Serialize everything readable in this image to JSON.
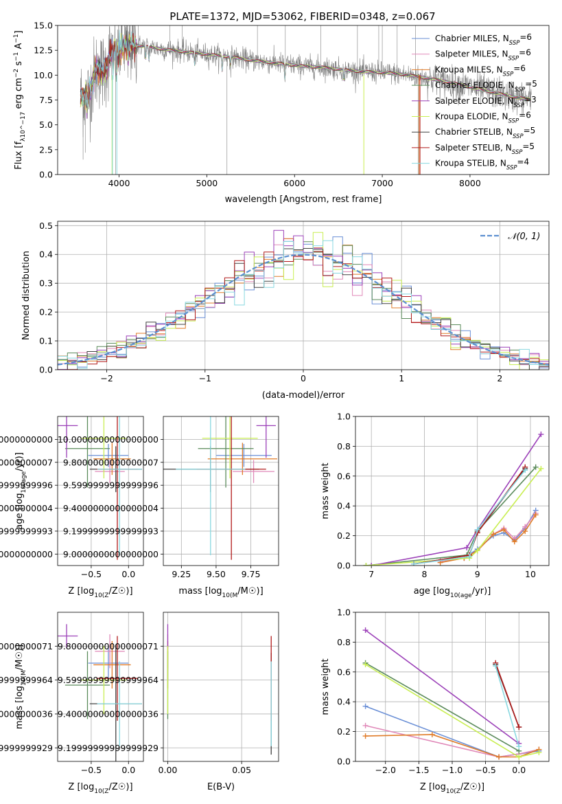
{
  "figure": {
    "title": "PLATE=1372, MJD=53062, FIBERID=0348, z=0.067"
  },
  "legend": [
    {
      "name": "Chabrier MILES",
      "nssp": "6",
      "color": "#6a8fd6"
    },
    {
      "name": "Salpeter MILES",
      "nssp": "6",
      "color": "#e088b8"
    },
    {
      "name": "Kroupa MILES",
      "nssp": "6",
      "color": "#e07b28"
    },
    {
      "name": "Chabrier ELODIE",
      "nssp": "5",
      "color": "#5a8a5a"
    },
    {
      "name": "Salpeter ELODIE",
      "nssp": "3",
      "color": "#9b3fb8"
    },
    {
      "name": "Kroupa ELODIE",
      "nssp": "6",
      "color": "#c8ee50"
    },
    {
      "name": "Chabrier STELIB",
      "nssp": "5",
      "color": "#404040"
    },
    {
      "name": "Salpeter STELIB",
      "nssp": "5",
      "color": "#b01818"
    },
    {
      "name": "Kroupa STELIB",
      "nssp": "4",
      "color": "#88d8e0"
    }
  ],
  "chart_data": [
    {
      "id": "spectrum",
      "type": "line",
      "xlabel": "wavelength [Angstrom, rest frame]",
      "ylabel": "Flux [f_λ 10^-17 erg cm^-2 s^-1 A^-1]",
      "xlim": [
        3300,
        8900
      ],
      "ylim": [
        0,
        15
      ],
      "xticks": [
        4000,
        5000,
        6000,
        7000,
        8000
      ],
      "yticks": [
        0.0,
        2.5,
        5.0,
        7.5,
        10.0,
        12.5,
        15.0
      ],
      "continuum": {
        "x": [
          3560,
          3650,
          3750,
          3850,
          3950,
          4050,
          4150,
          4300,
          4500,
          4700,
          4900,
          5100,
          5300,
          5500,
          5700,
          5900,
          6100,
          6300,
          6500,
          6700,
          6900,
          7100,
          7300,
          7500,
          7700,
          7900,
          8100,
          8300,
          8500,
          8700
        ],
        "y": [
          7.2,
          8.6,
          10.0,
          11.3,
          12.3,
          12.9,
          13.0,
          12.9,
          12.6,
          12.4,
          12.2,
          12.0,
          11.8,
          11.5,
          11.3,
          11.1,
          10.9,
          10.8,
          10.6,
          10.4,
          10.3,
          10.2,
          10.0,
          9.7,
          9.4,
          9.0,
          8.6,
          8.2,
          7.8,
          7.5
        ]
      },
      "series": [
        {
          "name": "observed",
          "color": "#808080"
        }
      ]
    },
    {
      "id": "residuals",
      "type": "step",
      "xlabel": "(data-model)/error",
      "ylabel": "Normed distribution",
      "xlim": [
        -2.5,
        2.5
      ],
      "ylim": [
        0,
        0.515
      ],
      "xticks": [
        -2,
        -1,
        0,
        1,
        2
      ],
      "yticks": [
        0.0,
        0.1,
        0.2,
        0.3,
        0.4,
        0.5
      ],
      "gaussian_label": "N(0,1)",
      "gaussian_color": "#5b8fd0",
      "bin_width": 0.1
    },
    {
      "id": "age_vs_Z",
      "type": "errorbar",
      "xlabel": "Z [log10(Z/Z☉)]",
      "ylabel": "age [log10(age/yr)]",
      "xlim": [
        -0.95,
        0.2
      ],
      "ylim": [
        8.9,
        10.2
      ],
      "xticks": [
        -0.5,
        0.0
      ],
      "yticks": [
        9.0,
        9.2,
        9.4,
        9.6,
        9.8,
        10.0
      ],
      "points": [
        {
          "x": -0.27,
          "xerr": 0.27,
          "y": 9.86,
          "yerr": 0.1,
          "color": "#6a8fd6"
        },
        {
          "x": -0.25,
          "xerr": 0.2,
          "y": 9.72,
          "yerr": 0.1,
          "color": "#e088b8"
        },
        {
          "x": -0.22,
          "xerr": 0.25,
          "y": 9.83,
          "yerr": 0.14,
          "color": "#e07b28"
        },
        {
          "x": -0.55,
          "xerr": 0.3,
          "y": 9.92,
          "yerr": 0.34,
          "color": "#5a8a5a"
        },
        {
          "x": -0.83,
          "xerr": 0.15,
          "y": 10.12,
          "yerr": 0.28,
          "color": "#9b3fb8"
        },
        {
          "x": -0.33,
          "xerr": 0.3,
          "y": 10.01,
          "yerr": 0.35,
          "color": "#c8ee50"
        },
        {
          "x": -0.17,
          "xerr": 0.35,
          "y": 9.74,
          "yerr": 0.2,
          "color": "#404040"
        },
        {
          "x": -0.15,
          "xerr": 0.28,
          "y": 9.74,
          "yerr": 0.79,
          "color": "#b01818"
        },
        {
          "x": -0.12,
          "xerr": 0.3,
          "y": 9.74,
          "yerr": 0.75,
          "color": "#88d8e0"
        }
      ]
    },
    {
      "id": "age_vs_mass",
      "type": "errorbar",
      "xlabel": "mass [log10(M/M☉)]",
      "ylabel": "",
      "xlim": [
        9.12,
        9.95
      ],
      "ylim": [
        8.9,
        10.2
      ],
      "xticks": [
        9.25,
        9.5,
        9.75
      ],
      "yticks": [
        9.0,
        9.2,
        9.4,
        9.6,
        9.8,
        10.0
      ],
      "points": [
        {
          "x": 9.7,
          "xerr": 0.2,
          "y": 9.86,
          "yerr": 0.1,
          "color": "#6a8fd6"
        },
        {
          "x": 9.77,
          "xerr": 0.15,
          "y": 9.72,
          "yerr": 0.1,
          "color": "#e088b8"
        },
        {
          "x": 9.69,
          "xerr": 0.25,
          "y": 9.83,
          "yerr": 0.14,
          "color": "#e07b28"
        },
        {
          "x": 9.57,
          "xerr": 0.2,
          "y": 9.92,
          "yerr": 0.34,
          "color": "#5a8a5a"
        },
        {
          "x": 9.86,
          "xerr": 0.07,
          "y": 10.12,
          "yerr": 0.28,
          "color": "#9b3fb8"
        },
        {
          "x": 9.6,
          "xerr": 0.2,
          "y": 10.01,
          "yerr": 0.35,
          "color": "#c8ee50"
        },
        {
          "x": 9.46,
          "xerr": 0.35,
          "y": 9.74,
          "yerr": 0.2,
          "color": "#404040"
        },
        {
          "x": 9.61,
          "xerr": 0.25,
          "y": 9.74,
          "yerr": 0.79,
          "color": "#b01818"
        },
        {
          "x": 9.46,
          "xerr": 0.25,
          "y": 9.74,
          "yerr": 0.75,
          "color": "#88d8e0"
        }
      ]
    },
    {
      "id": "mass_weight_vs_age",
      "type": "line",
      "xlabel": "age [log10(age/yr)]",
      "ylabel": "mass weight",
      "xlim": [
        6.7,
        10.35
      ],
      "ylim": [
        0,
        1.0
      ],
      "xticks": [
        7,
        8,
        9,
        10
      ],
      "yticks": [
        0.0,
        0.2,
        0.4,
        0.6,
        0.8,
        1.0
      ],
      "series": [
        {
          "name": "Chabrier MILES",
          "color": "#6a8fd6",
          "x": [
            8.3,
            8.75,
            9.0,
            9.3,
            9.5,
            9.7,
            9.9,
            10.1
          ],
          "y": [
            0.03,
            0.05,
            0.11,
            0.2,
            0.22,
            0.17,
            0.25,
            0.37
          ]
        },
        {
          "name": "Salpeter MILES",
          "color": "#e088b8",
          "x": [
            8.3,
            8.75,
            9.0,
            9.3,
            9.5,
            9.7,
            9.9,
            10.1
          ],
          "y": [
            0.03,
            0.05,
            0.1,
            0.21,
            0.25,
            0.18,
            0.26,
            0.35
          ]
        },
        {
          "name": "Kroupa MILES",
          "color": "#e07b28",
          "x": [
            8.3,
            8.75,
            9.0,
            9.3,
            9.5,
            9.7,
            9.9,
            10.1
          ],
          "y": [
            0.02,
            0.05,
            0.1,
            0.21,
            0.24,
            0.16,
            0.23,
            0.34
          ]
        },
        {
          "name": "Chabrier ELODIE",
          "color": "#5a8a5a",
          "x": [
            6.9,
            8.8,
            9.0,
            10.1
          ],
          "y": [
            0.0,
            0.07,
            0.23,
            0.66
          ]
        },
        {
          "name": "Salpeter ELODIE",
          "color": "#9b3fb8",
          "x": [
            7.0,
            8.8,
            9.0,
            10.2
          ],
          "y": [
            0.0,
            0.12,
            0.24,
            0.88
          ]
        },
        {
          "name": "Kroupa ELODIE",
          "color": "#c8ee50",
          "x": [
            6.9,
            8.85,
            9.0,
            10.2
          ],
          "y": [
            0.0,
            0.05,
            0.1,
            0.65
          ]
        },
        {
          "name": "Chabrier STELIB",
          "color": "#404040",
          "x": [
            7.8,
            8.85,
            9.0,
            9.9
          ],
          "y": [
            0.01,
            0.07,
            0.22,
            0.65
          ]
        },
        {
          "name": "Salpeter STELIB",
          "color": "#b01818",
          "x": [
            7.8,
            8.85,
            9.0,
            9.9
          ],
          "y": [
            0.01,
            0.07,
            0.22,
            0.66
          ]
        },
        {
          "name": "Kroupa STELIB",
          "color": "#88d8e0",
          "x": [
            7.8,
            8.85,
            9.0,
            9.9
          ],
          "y": [
            0.01,
            0.06,
            0.24,
            0.64
          ]
        }
      ]
    },
    {
      "id": "mass_vs_Z",
      "type": "errorbar",
      "xlabel": "Z [log10(Z/Z☉)]",
      "ylabel": "mass [log10(M/M☉)]",
      "xlim": [
        -0.95,
        0.2
      ],
      "ylim": [
        9.12,
        10.0
      ],
      "xticks": [
        -0.5,
        0.0
      ],
      "yticks": [
        9.2,
        9.4,
        9.6,
        9.8
      ],
      "points": [
        {
          "x": -0.27,
          "xerr": 0.27,
          "y": 9.7,
          "yerr": 0.1,
          "color": "#6a8fd6"
        },
        {
          "x": -0.25,
          "xerr": 0.2,
          "y": 9.77,
          "yerr": 0.1,
          "color": "#e088b8"
        },
        {
          "x": -0.22,
          "xerr": 0.25,
          "y": 9.69,
          "yerr": 0.14,
          "color": "#e07b28"
        },
        {
          "x": -0.55,
          "xerr": 0.3,
          "y": 9.57,
          "yerr": 0.2,
          "color": "#5a8a5a"
        },
        {
          "x": -0.83,
          "xerr": 0.15,
          "y": 9.86,
          "yerr": 0.07,
          "color": "#9b3fb8"
        },
        {
          "x": -0.33,
          "xerr": 0.3,
          "y": 9.6,
          "yerr": 0.2,
          "color": "#c8ee50"
        },
        {
          "x": -0.17,
          "xerr": 0.35,
          "y": 9.46,
          "yerr": 0.35,
          "color": "#404040"
        },
        {
          "x": -0.15,
          "xerr": 0.28,
          "y": 9.61,
          "yerr": 0.25,
          "color": "#b01818"
        },
        {
          "x": -0.12,
          "xerr": 0.3,
          "y": 9.46,
          "yerr": 0.25,
          "color": "#88d8e0"
        }
      ]
    },
    {
      "id": "mass_vs_EBV",
      "type": "errorbar",
      "xlabel": "E(B-V)",
      "ylabel": "",
      "xlim": [
        -0.003,
        0.075
      ],
      "ylim": [
        9.12,
        10.0
      ],
      "xticks": [
        0.0,
        0.05
      ],
      "yticks": [
        9.2,
        9.4,
        9.6,
        9.8
      ],
      "points": [
        {
          "x": 0.0,
          "xerr": 0.0,
          "y": 9.7,
          "yerr": 0.1,
          "color": "#6a8fd6"
        },
        {
          "x": 0.0,
          "xerr": 0.0,
          "y": 9.77,
          "yerr": 0.1,
          "color": "#e088b8"
        },
        {
          "x": 0.0,
          "xerr": 0.0,
          "y": 9.69,
          "yerr": 0.14,
          "color": "#e07b28"
        },
        {
          "x": 0.0,
          "xerr": 0.0,
          "y": 9.57,
          "yerr": 0.2,
          "color": "#5a8a5a"
        },
        {
          "x": 0.0,
          "xerr": 0.0,
          "y": 9.86,
          "yerr": 0.07,
          "color": "#9b3fb8"
        },
        {
          "x": 0.0,
          "xerr": 0.0,
          "y": 9.6,
          "yerr": 0.2,
          "color": "#c8ee50"
        },
        {
          "x": 0.07,
          "xerr": 0.0,
          "y": 9.46,
          "yerr": 0.3,
          "color": "#404040"
        },
        {
          "x": 0.07,
          "xerr": 0.0,
          "y": 9.61,
          "yerr": 0.25,
          "color": "#b01818"
        },
        {
          "x": 0.07,
          "xerr": 0.0,
          "y": 9.46,
          "yerr": 0.25,
          "color": "#88d8e0"
        }
      ]
    },
    {
      "id": "mass_weight_vs_Z",
      "type": "line",
      "xlabel": "Z [log10(Z/Z☉)]",
      "ylabel": "mass weight",
      "xlim": [
        -2.45,
        0.45
      ],
      "ylim": [
        0,
        1.0
      ],
      "xticks": [
        -2.0,
        -1.5,
        -1.0,
        -0.5,
        0.0
      ],
      "yticks": [
        0.0,
        0.2,
        0.4,
        0.6,
        0.8,
        1.0
      ],
      "series": [
        {
          "name": "Chabrier MILES",
          "color": "#6a8fd6",
          "x": [
            -2.3,
            -0.3,
            0.0,
            0.3
          ],
          "y": [
            0.37,
            0.03,
            0.05,
            0.07
          ]
        },
        {
          "name": "Salpeter MILES",
          "color": "#e088b8",
          "x": [
            -2.3,
            -0.3,
            0.0,
            0.3
          ],
          "y": [
            0.24,
            0.03,
            0.05,
            0.08
          ]
        },
        {
          "name": "Kroupa MILES",
          "color": "#e07b28",
          "x": [
            -2.3,
            -1.3,
            -0.3,
            0.0,
            0.3
          ],
          "y": [
            0.17,
            0.18,
            0.03,
            0.03,
            0.08
          ]
        },
        {
          "name": "Chabrier ELODIE",
          "color": "#5a8a5a",
          "x": [
            -2.3,
            0.0
          ],
          "y": [
            0.66,
            0.07
          ]
        },
        {
          "name": "Salpeter ELODIE",
          "color": "#9b3fb8",
          "x": [
            -2.3,
            0.0
          ],
          "y": [
            0.88,
            0.12
          ]
        },
        {
          "name": "Kroupa ELODIE",
          "color": "#c8ee50",
          "x": [
            -2.3,
            0.0,
            0.3
          ],
          "y": [
            0.65,
            0.03,
            0.06
          ]
        },
        {
          "name": "Chabrier STELIB",
          "color": "#404040",
          "x": [
            -0.35,
            0.0
          ],
          "y": [
            0.65,
            0.23
          ]
        },
        {
          "name": "Salpeter STELIB",
          "color": "#b01818",
          "x": [
            -0.35,
            0.0
          ],
          "y": [
            0.66,
            0.23
          ]
        },
        {
          "name": "Kroupa STELIB",
          "color": "#88d8e0",
          "x": [
            -0.35,
            0.0
          ],
          "y": [
            0.64,
            0.1
          ]
        }
      ]
    }
  ]
}
